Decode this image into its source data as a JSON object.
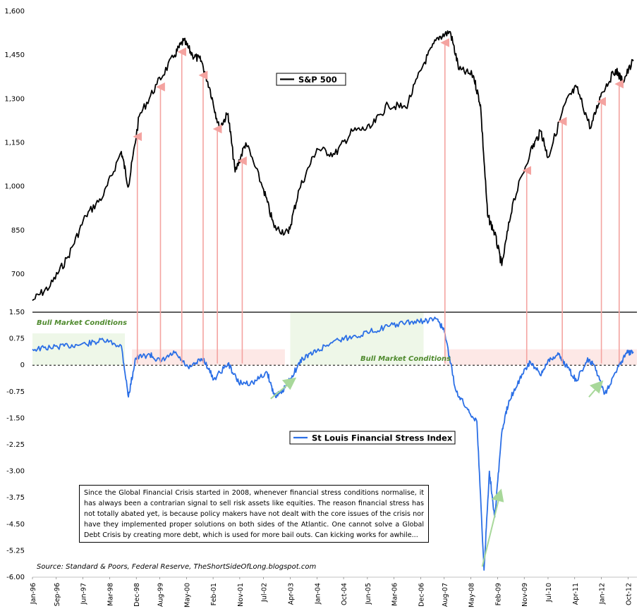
{
  "chart_data": [
    {
      "type": "line",
      "title": "S&P 500",
      "legend": "S&P 500",
      "color": "#000000",
      "yticks": [
        "1,600",
        "1,450",
        "1,300",
        "1,150",
        "1,000",
        "850",
        "700"
      ],
      "ytick_values": [
        1600,
        1450,
        1300,
        1150,
        1000,
        850,
        700
      ],
      "ylim": [
        570,
        1600
      ],
      "x": [
        1996.0,
        1996.5,
        1997.0,
        1997.5,
        1998.0,
        1998.5,
        1998.7,
        1999.0,
        1999.5,
        2000.0,
        2000.25,
        2000.5,
        2000.75,
        2001.0,
        2001.25,
        2001.5,
        2001.7,
        2002.0,
        2002.5,
        2002.8,
        2003.2,
        2003.5,
        2004.0,
        2004.5,
        2005.0,
        2005.5,
        2006.0,
        2006.5,
        2007.0,
        2007.4,
        2007.75,
        2008.0,
        2008.4,
        2008.6,
        2008.8,
        2009.0,
        2009.2,
        2009.5,
        2010.0,
        2010.3,
        2010.5,
        2011.0,
        2011.3,
        2011.7,
        2012.0,
        2012.4,
        2012.6,
        2012.9
      ],
      "values": [
        610,
        660,
        760,
        900,
        970,
        1120,
        1000,
        1240,
        1350,
        1450,
        1500,
        1450,
        1430,
        1330,
        1200,
        1250,
        1050,
        1150,
        990,
        860,
        840,
        990,
        1130,
        1110,
        1190,
        1200,
        1280,
        1270,
        1420,
        1510,
        1530,
        1400,
        1380,
        1280,
        900,
        840,
        730,
        940,
        1120,
        1190,
        1100,
        1290,
        1340,
        1200,
        1320,
        1400,
        1360,
        1430
      ]
    },
    {
      "type": "line",
      "title": "St Louis Financial Stress Index",
      "legend": "St Louis Financial Stress Index",
      "color": "#2b6fe6",
      "yticks": [
        "1.50",
        "0.75",
        "0",
        "-0.75",
        "-1.50",
        "-2.25",
        "-3.00",
        "-3.75",
        "-4.50",
        "-5.25",
        "-6.00"
      ],
      "ytick_values": [
        1.5,
        0.75,
        0,
        -0.75,
        -1.5,
        -2.25,
        -3.0,
        -3.75,
        -4.5,
        -5.25,
        -6.0
      ],
      "ylim": [
        -6.0,
        1.5
      ],
      "x": [
        1996.0,
        1996.5,
        1997.0,
        1997.5,
        1998.0,
        1998.5,
        1998.7,
        1998.9,
        1999.3,
        1999.6,
        2000.0,
        2000.4,
        2000.8,
        2001.1,
        2001.5,
        2001.8,
        2002.2,
        2002.6,
        2002.8,
        2003.0,
        2003.3,
        2003.6,
        2004.0,
        2004.5,
        2005.0,
        2005.5,
        2006.0,
        2006.5,
        2007.0,
        2007.4,
        2007.6,
        2007.9,
        2008.2,
        2008.5,
        2008.7,
        2008.85,
        2009.0,
        2009.2,
        2009.4,
        2009.7,
        2010.0,
        2010.3,
        2010.5,
        2010.8,
        2011.0,
        2011.3,
        2011.6,
        2011.8,
        2012.1,
        2012.4,
        2012.7,
        2012.9
      ],
      "values": [
        0.45,
        0.5,
        0.55,
        0.6,
        0.7,
        0.55,
        -0.9,
        0.2,
        0.3,
        0.1,
        0.35,
        -0.1,
        0.2,
        -0.4,
        0.05,
        -0.5,
        -0.5,
        -0.2,
        -0.85,
        -0.8,
        -0.3,
        0.2,
        0.4,
        0.7,
        0.8,
        0.95,
        1.1,
        1.2,
        1.25,
        1.3,
        0.9,
        -0.7,
        -1.2,
        -1.6,
        -5.8,
        -3.0,
        -4.3,
        -1.9,
        -1.0,
        -0.4,
        0.1,
        -0.3,
        0.15,
        0.3,
        0.0,
        -0.45,
        0.15,
        0.0,
        -0.8,
        -0.2,
        0.35,
        0.35
      ]
    }
  ],
  "x_axis": {
    "range": [
      1996.0,
      2013.0
    ],
    "tick_labels": [
      "Jan-96",
      "Sep-96",
      "Jun-97",
      "Mar-98",
      "Dec-98",
      "Aug-99",
      "May-00",
      "Feb-01",
      "Nov-01",
      "Jul-02",
      "Apr-03",
      "Jan-04",
      "Oct-04",
      "Jun-05",
      "Mar-06",
      "Dec-06",
      "Aug-07",
      "May-08",
      "Feb-09",
      "Nov-09",
      "Jul-10",
      "Apr-11",
      "Jan-12",
      "Oct-12"
    ],
    "tick_values": [
      1996.0,
      1996.67,
      1997.42,
      1998.17,
      1998.92,
      1999.58,
      2000.33,
      2001.08,
      2001.83,
      2002.5,
      2003.25,
      2004.0,
      2004.75,
      2005.42,
      2006.17,
      2006.92,
      2007.58,
      2008.33,
      2009.08,
      2009.83,
      2010.5,
      2011.25,
      2012.0,
      2012.75
    ]
  },
  "annotations": {
    "bull_label_1": "Bull Market Conditions",
    "bull_label_2": "Bull Market Conditions",
    "bull_zone_1": [
      1996.0,
      1998.6
    ],
    "bull_zone_2": [
      2003.25,
      2007.0
    ],
    "stress_zone_1": [
      1998.8,
      2003.1
    ],
    "stress_zone_2": [
      2007.6,
      2013.0
    ],
    "signal_years": [
      1998.95,
      1999.6,
      2000.2,
      2000.8,
      2001.2,
      2001.9,
      2007.6,
      2009.9,
      2010.9,
      2012.0,
      2012.5
    ],
    "up_arrows_fsi": [
      [
        2002.7,
        -0.95,
        2003.3,
        -0.45
      ],
      [
        2008.65,
        -5.7,
        2009.15,
        -3.65
      ],
      [
        2011.65,
        -0.9,
        2011.95,
        -0.55
      ]
    ]
  },
  "note": "Since the Global Financial Crisis started in 2008, whenever financial stress conditions normalise, it has always been a contrarian signal to sell risk assets like equities. The reason financial stress has not totally abated yet, is because policy makers have not dealt with the core issues of the crisis nor have they implemented proper solutions on both sides of the Atlantic. One cannot solve a Global Debt Crisis by creating more debt, which is used for more bail outs. Can kicking works for awhile...",
  "source": "Source: Standard & Poors, Federal Reserve, TheShortSideOfLong.blogspot.com"
}
